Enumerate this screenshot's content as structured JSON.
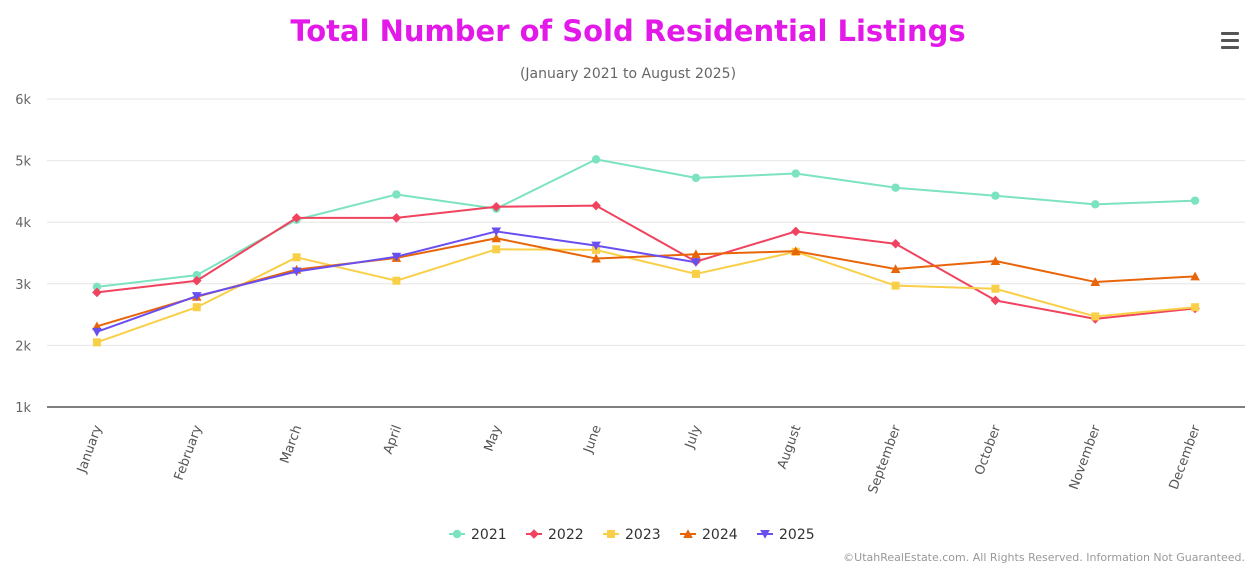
{
  "title": "Total Number of Sold Residential Listings",
  "subtitle": "(January 2021 to August 2025)",
  "credits": "©UtahRealEstate.com. All Rights Reserved. Information Not Guaranteed.",
  "menu_icon": "hamburger-menu-icon",
  "chart_data": {
    "type": "line",
    "categories": [
      "January",
      "February",
      "March",
      "April",
      "May",
      "June",
      "July",
      "August",
      "September",
      "October",
      "November",
      "December"
    ],
    "y_tick_labels": [
      "1k",
      "2k",
      "3k",
      "4k",
      "5k",
      "6k"
    ],
    "ylim": [
      1000,
      6000
    ],
    "grid": true,
    "legend_position": "bottom-center",
    "series": [
      {
        "name": "2021",
        "color": "#7ce3c1",
        "marker": "circle",
        "values": [
          2950,
          3140,
          4040,
          4450,
          4220,
          5020,
          4720,
          4790,
          4560,
          4430,
          4290,
          4350
        ]
      },
      {
        "name": "2022",
        "color": "#f0435f",
        "marker": "diamond",
        "values": [
          2860,
          3050,
          4070,
          4070,
          4250,
          4270,
          3360,
          3850,
          3650,
          2730,
          2430,
          2600
        ]
      },
      {
        "name": "2023",
        "color": "#f9cf48",
        "marker": "square",
        "values": [
          2050,
          2620,
          3430,
          3050,
          3560,
          3550,
          3160,
          3520,
          2970,
          2920,
          2470,
          2620
        ]
      },
      {
        "name": "2024",
        "color": "#e8650a",
        "marker": "triangle",
        "values": [
          2310,
          2790,
          3230,
          3420,
          3740,
          3410,
          3480,
          3530,
          3240,
          3370,
          3030,
          3120
        ]
      },
      {
        "name": "2025",
        "color": "#6a4ff0",
        "marker": "triangle-down",
        "values": [
          2220,
          2800,
          3200,
          3440,
          3850,
          3620,
          3350,
          null,
          null,
          null,
          null,
          null
        ]
      }
    ]
  }
}
